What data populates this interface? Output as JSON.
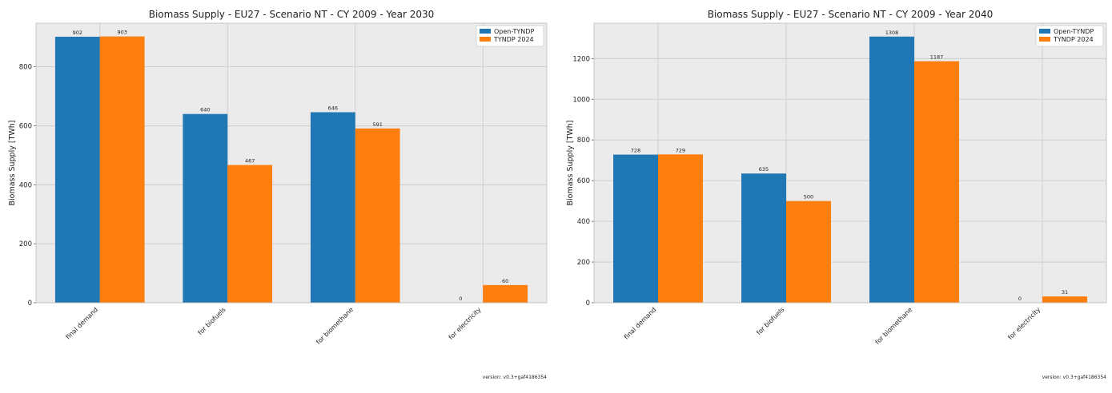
{
  "palette": {
    "plot_bg": "#ebebeb",
    "grid": "#c8c8c8",
    "series_colors": [
      "#1f77b4",
      "#ff7f0e"
    ]
  },
  "chart_data": [
    {
      "type": "bar",
      "title": "Biomass Supply - EU27 - Scenario NT - CY 2009 - Year 2030",
      "xlabel": "",
      "ylabel": "Biomass Supply [TWh]",
      "categories": [
        "final demand",
        "for biofuels",
        "for biomethane",
        "for electricity"
      ],
      "series": [
        {
          "name": "Open-TYNDP",
          "values": [
            902,
            640,
            646,
            0
          ]
        },
        {
          "name": "TYNDP 2024",
          "values": [
            903,
            467,
            591,
            60
          ]
        }
      ],
      "ylim": [
        0,
        948
      ],
      "yticks": [
        0,
        200,
        400,
        600,
        800
      ],
      "grid": true,
      "legend": "top-right",
      "footer": "version: v0.3+gaf4186354"
    },
    {
      "type": "bar",
      "title": "Biomass Supply - EU27 - Scenario NT - CY 2009 - Year 2040",
      "xlabel": "",
      "ylabel": "Biomass Supply [TWh]",
      "categories": [
        "final demand",
        "for biofuels",
        "for biomethane",
        "for electricity"
      ],
      "series": [
        {
          "name": "Open-TYNDP",
          "values": [
            728,
            635,
            1308,
            0
          ]
        },
        {
          "name": "TYNDP 2024",
          "values": [
            729,
            500,
            1187,
            31
          ]
        }
      ],
      "ylim": [
        0,
        1374
      ],
      "yticks": [
        0,
        200,
        400,
        600,
        800,
        1000,
        1200
      ],
      "grid": true,
      "legend": "top-right",
      "footer": "version: v0.3+gaf4186354"
    }
  ]
}
